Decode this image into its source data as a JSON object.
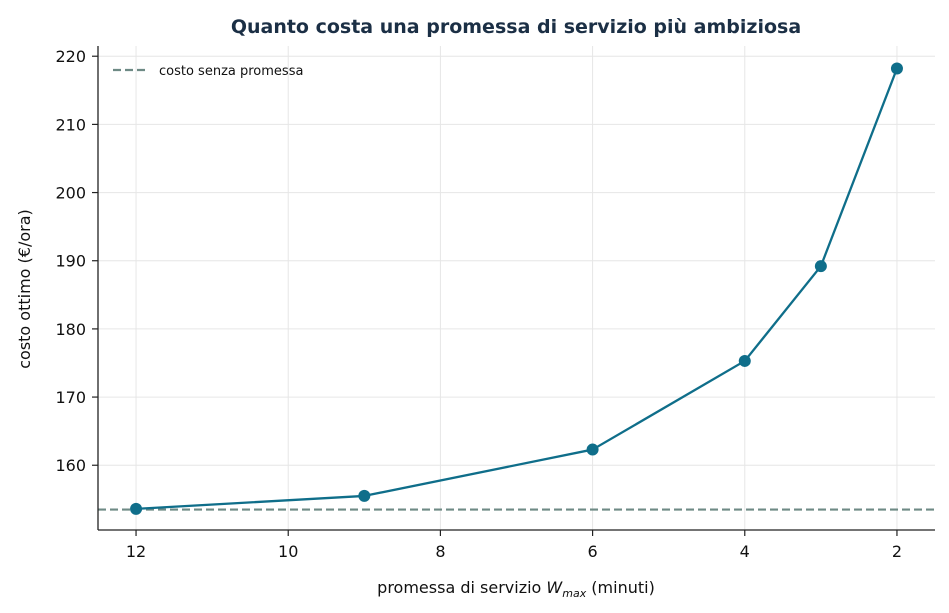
{
  "chart_data": {
    "type": "line",
    "title": "Quanto costa una promessa di servizio più ambiziosa",
    "xlabel_prefix": "promessa di servizio ",
    "xlabel_var": "W",
    "xlabel_sub": "max",
    "xlabel_suffix": " (minuti)",
    "ylabel": "costo ottimo (€/ora)",
    "x_inverted": true,
    "xlim": [
      12.5,
      1.5
    ],
    "ylim": [
      150.5,
      221.5
    ],
    "xticks": [
      12,
      10,
      8,
      6,
      4,
      2
    ],
    "yticks": [
      160,
      170,
      180,
      190,
      200,
      210,
      220
    ],
    "grid": true,
    "legend_position": "top-left",
    "series": [
      {
        "color": "#0f6e8a",
        "x": [
          12,
          9,
          6,
          4,
          3,
          2
        ],
        "y": [
          153.6,
          155.5,
          162.3,
          175.3,
          189.2,
          218.2
        ]
      }
    ],
    "reference_line": {
      "name": "costo senza promessa",
      "y": 153.5,
      "color": "#6e8a85",
      "style": "dashed"
    }
  }
}
